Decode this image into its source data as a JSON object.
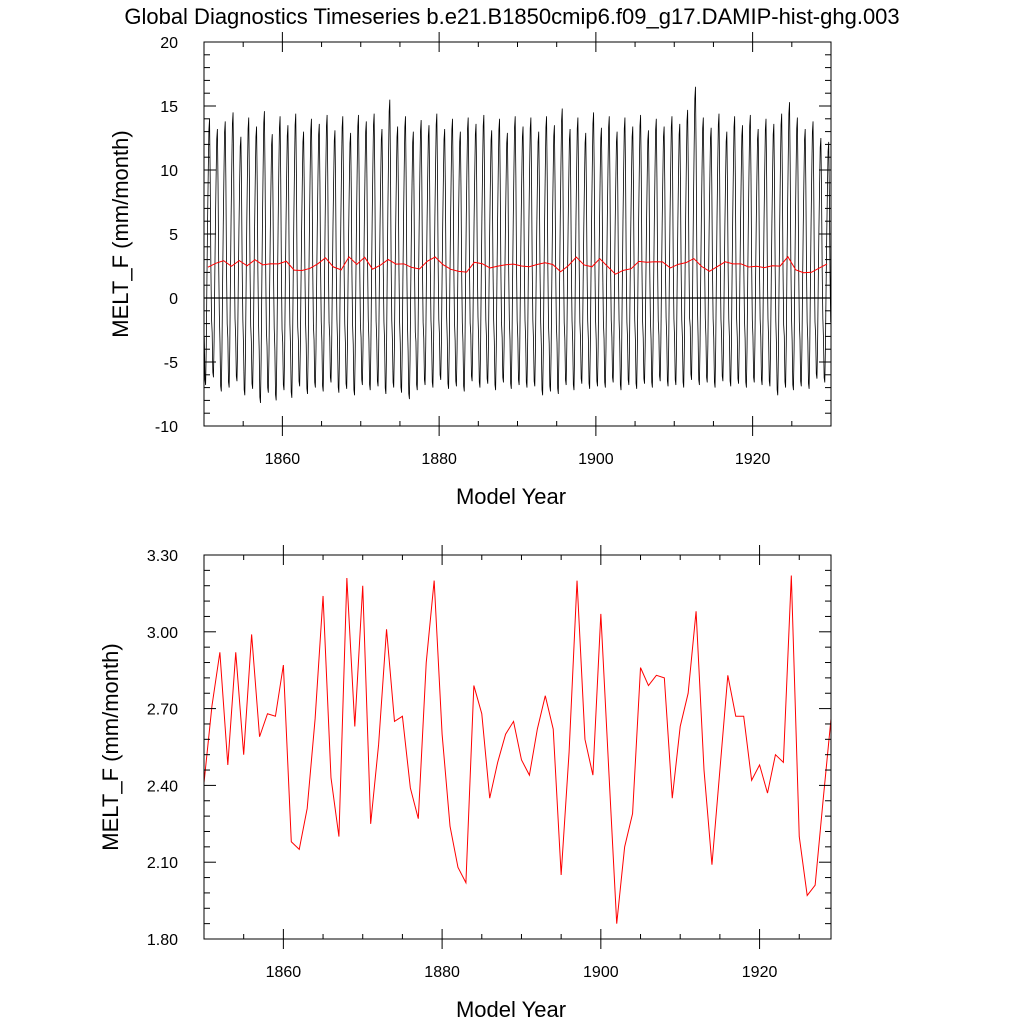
{
  "figure": {
    "title": "Global Diagnostics Timeseries b.e21.B1850cmip6.f09_g17.DAMIP-hist-ghg.003"
  },
  "colors": {
    "monthly_line": "#000000",
    "annual_line": "#ff0000",
    "axes": "#000000",
    "background": "#ffffff"
  },
  "chart_data": [
    {
      "type": "line",
      "title": "Global Diagnostics Timeseries b.e21.B1850cmip6.f09_g17.DAMIP-hist-ghg.003",
      "xlabel": "Model Year",
      "ylabel": "MELT_F (mm/month)",
      "xlim": [
        1850,
        1930
      ],
      "ylim": [
        -10,
        20
      ],
      "x_ticks": [
        1860,
        1880,
        1900,
        1920
      ],
      "x_tick_labels": [
        "1860",
        "1880",
        "1900",
        "1920"
      ],
      "y_ticks": [
        -10,
        -5,
        0,
        5,
        10,
        15,
        20
      ],
      "y_tick_labels": [
        "-10",
        "-5",
        "0",
        "5",
        "10",
        "15",
        "20"
      ],
      "grid": false,
      "reference_line": 0,
      "monthly_cycle": {
        "description_values": "annual peaks and troughs of the monthly series (mm/month)",
        "peaks": [
          14.0,
          13.2,
          13.8,
          14.5,
          12.6,
          14.1,
          13.4,
          14.6,
          12.8,
          14.2,
          13.5,
          14.4,
          13.0,
          14.0,
          13.6,
          14.3,
          13.1,
          14.2,
          12.9,
          14.3,
          13.8,
          14.4,
          13.2,
          15.5,
          13.4,
          14.2,
          13.0,
          13.9,
          13.5,
          14.4,
          13.2,
          14.0,
          13.0,
          14.1,
          13.6,
          14.3,
          13.1,
          14.0,
          12.9,
          14.2,
          13.4,
          14.1,
          13.0,
          14.2,
          13.5,
          14.8,
          13.2,
          14.1,
          12.9,
          14.5,
          13.3,
          14.2,
          13.0,
          14.1,
          13.4,
          14.3,
          13.1,
          14.0,
          13.4,
          14.2,
          13.6,
          14.7,
          16.5,
          14.1,
          13.3,
          14.4,
          13.0,
          14.2,
          13.5,
          14.3,
          13.2,
          14.0,
          13.6,
          14.4,
          15.3,
          14.1,
          13.2,
          13.8,
          12.5,
          12.2
        ],
        "troughs": [
          -6.8,
          -6.2,
          -7.3,
          -7.0,
          -6.5,
          -7.6,
          -7.1,
          -8.2,
          -7.4,
          -8.0,
          -7.2,
          -7.8,
          -6.9,
          -7.5,
          -7.0,
          -7.3,
          -6.6,
          -7.4,
          -7.1,
          -7.6,
          -6.8,
          -7.2,
          -6.9,
          -7.5,
          -7.0,
          -7.4,
          -7.9,
          -7.2,
          -6.8,
          -7.0,
          -6.4,
          -7.1,
          -6.9,
          -7.3,
          -6.5,
          -7.0,
          -6.7,
          -7.2,
          -6.6,
          -7.1,
          -6.8,
          -7.0,
          -6.9,
          -7.6,
          -7.3,
          -7.5,
          -6.8,
          -7.2,
          -6.7,
          -7.1,
          -6.9,
          -7.0,
          -6.6,
          -7.2,
          -6.8,
          -7.1,
          -6.7,
          -7.0,
          -6.5,
          -6.9,
          -6.8,
          -7.0,
          -6.4,
          -6.8,
          -6.6,
          -7.0,
          -6.5,
          -6.9,
          -6.7,
          -7.0,
          -6.6,
          -6.8,
          -6.9,
          -7.6,
          -7.0,
          -7.2,
          -6.9,
          -7.1,
          -6.3,
          -6.6
        ]
      },
      "series": [
        {
          "role": "annual_mean",
          "x": [
            1850.5,
            1851.5,
            1852.5,
            1853.5,
            1854.5,
            1855.5,
            1856.5,
            1857.5,
            1858.5,
            1859.5,
            1860.5,
            1861.5,
            1862.5,
            1863.5,
            1864.5,
            1865.5,
            1866.5,
            1867.5,
            1868.5,
            1869.5,
            1870.5,
            1871.5,
            1872.5,
            1873.5,
            1874.5,
            1875.5,
            1876.5,
            1877.5,
            1878.5,
            1879.5,
            1880.5,
            1881.5,
            1882.5,
            1883.5,
            1884.5,
            1885.5,
            1886.5,
            1887.5,
            1888.5,
            1889.5,
            1890.5,
            1891.5,
            1892.5,
            1893.5,
            1894.5,
            1895.5,
            1896.5,
            1897.5,
            1898.5,
            1899.5,
            1900.5,
            1901.5,
            1902.5,
            1903.5,
            1904.5,
            1905.5,
            1906.5,
            1907.5,
            1908.5,
            1909.5,
            1910.5,
            1911.5,
            1912.5,
            1913.5,
            1914.5,
            1915.5,
            1916.5,
            1917.5,
            1918.5,
            1919.5,
            1920.5,
            1921.5,
            1922.5,
            1923.5,
            1924.5,
            1925.5,
            1926.5,
            1927.5,
            1928.5,
            1929.5
          ],
          "values": [
            2.41,
            2.71,
            2.92,
            2.48,
            2.92,
            2.52,
            2.99,
            2.59,
            2.68,
            2.67,
            2.87,
            2.18,
            2.15,
            2.31,
            2.66,
            3.14,
            2.43,
            2.2,
            3.21,
            2.63,
            3.18,
            2.25,
            2.56,
            3.01,
            2.65,
            2.67,
            2.39,
            2.27,
            2.88,
            3.2,
            2.6,
            2.24,
            2.08,
            2.02,
            2.79,
            2.68,
            2.35,
            2.49,
            2.6,
            2.65,
            2.5,
            2.44,
            2.62,
            2.75,
            2.62,
            2.05,
            2.53,
            3.2,
            2.58,
            2.44,
            3.07,
            2.46,
            1.86,
            2.16,
            2.29,
            2.86,
            2.79,
            2.83,
            2.82,
            2.35,
            2.63,
            2.76,
            3.08,
            2.46,
            2.09,
            2.46,
            2.83,
            2.67,
            2.67,
            2.42,
            2.48,
            2.37,
            2.52,
            2.49,
            3.22,
            2.2,
            1.97,
            2.01,
            2.34,
            2.66
          ]
        }
      ]
    },
    {
      "type": "line",
      "title": "",
      "xlabel": "Model Year",
      "ylabel": "MELT_F (mm/month)",
      "xlim": [
        1850,
        1929
      ],
      "ylim": [
        1.8,
        3.3
      ],
      "x_ticks": [
        1860,
        1880,
        1900,
        1920
      ],
      "x_tick_labels": [
        "1860",
        "1880",
        "1900",
        "1920"
      ],
      "y_ticks": [
        1.8,
        2.1,
        2.4,
        2.7,
        3.0,
        3.3
      ],
      "y_tick_labels": [
        "1.80",
        "2.10",
        "2.40",
        "2.70",
        "3.00",
        "3.30"
      ],
      "grid": false,
      "series": [
        {
          "role": "annual_mean",
          "x": [
            1850,
            1851,
            1852,
            1853,
            1854,
            1855,
            1856,
            1857,
            1858,
            1859,
            1860,
            1861,
            1862,
            1863,
            1864,
            1865,
            1866,
            1867,
            1868,
            1869,
            1870,
            1871,
            1872,
            1873,
            1874,
            1875,
            1876,
            1877,
            1878,
            1879,
            1880,
            1881,
            1882,
            1883,
            1884,
            1885,
            1886,
            1887,
            1888,
            1889,
            1890,
            1891,
            1892,
            1893,
            1894,
            1895,
            1896,
            1897,
            1898,
            1899,
            1900,
            1901,
            1902,
            1903,
            1904,
            1905,
            1906,
            1907,
            1908,
            1909,
            1910,
            1911,
            1912,
            1913,
            1914,
            1915,
            1916,
            1917,
            1918,
            1919,
            1920,
            1921,
            1922,
            1923,
            1924,
            1925,
            1926,
            1927,
            1928,
            1929
          ],
          "values": [
            2.41,
            2.71,
            2.92,
            2.48,
            2.92,
            2.52,
            2.99,
            2.59,
            2.68,
            2.67,
            2.87,
            2.18,
            2.15,
            2.31,
            2.66,
            3.14,
            2.43,
            2.2,
            3.21,
            2.63,
            3.18,
            2.25,
            2.56,
            3.01,
            2.65,
            2.67,
            2.39,
            2.27,
            2.88,
            3.2,
            2.6,
            2.24,
            2.08,
            2.02,
            2.79,
            2.68,
            2.35,
            2.49,
            2.6,
            2.65,
            2.5,
            2.44,
            2.62,
            2.75,
            2.62,
            2.05,
            2.53,
            3.2,
            2.58,
            2.44,
            3.07,
            2.46,
            1.86,
            2.16,
            2.29,
            2.86,
            2.79,
            2.83,
            2.82,
            2.35,
            2.63,
            2.76,
            3.08,
            2.46,
            2.09,
            2.46,
            2.83,
            2.67,
            2.67,
            2.42,
            2.48,
            2.37,
            2.52,
            2.49,
            3.22,
            2.2,
            1.97,
            2.01,
            2.34,
            2.66
          ]
        }
      ]
    }
  ]
}
